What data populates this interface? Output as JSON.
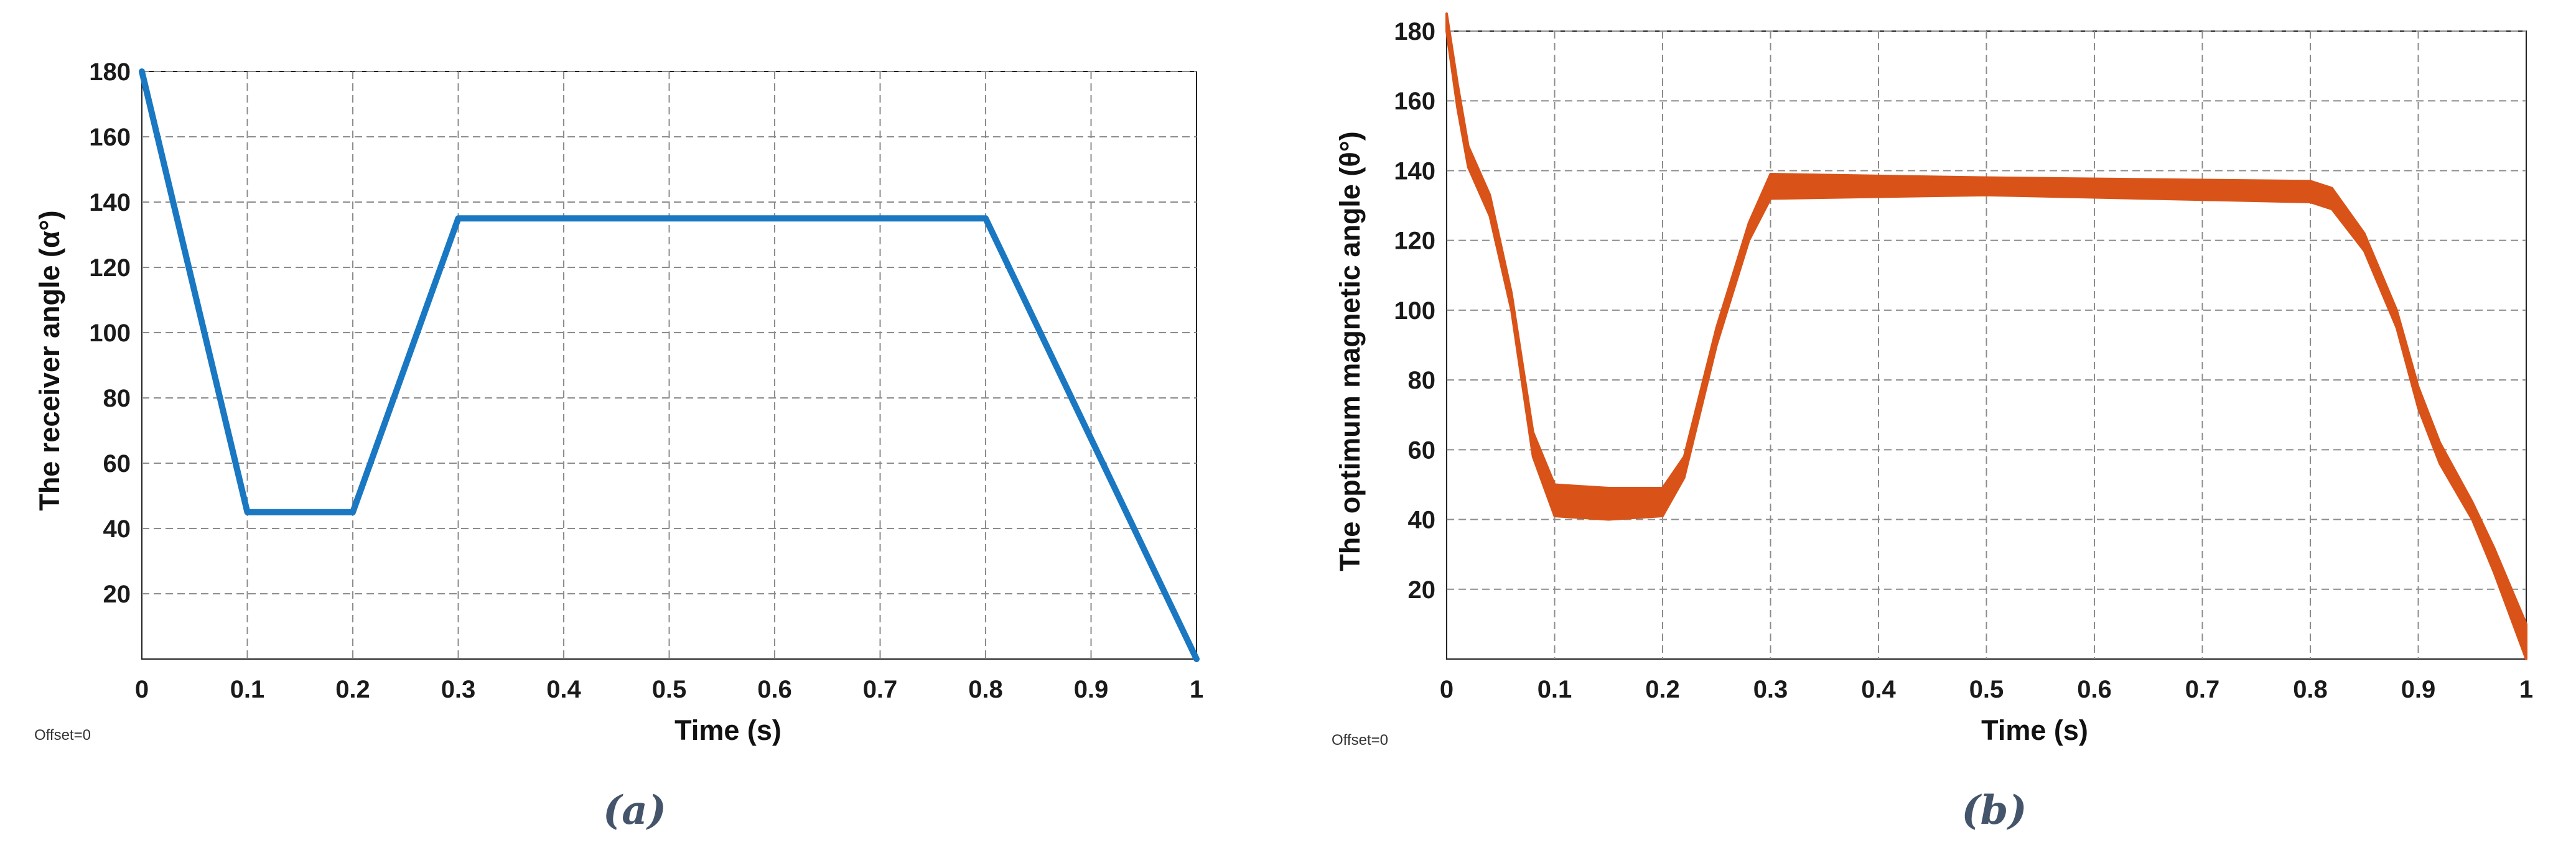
{
  "colors": {
    "grid": "#8c8c8c",
    "axis": "#222222",
    "series_a": "#1a78c2",
    "series_b": "#d95319",
    "caption": "#44546a"
  },
  "chart_data": [
    {
      "type": "line",
      "caption": "(a)",
      "xlabel": "Time (s)",
      "ylabel": "The receiver angle (α°)",
      "offset_text": "Offset=0",
      "xlim": [
        0,
        1
      ],
      "ylim": [
        0,
        180
      ],
      "xticks": [
        "0",
        "0.1",
        "0.2",
        "0.3",
        "0.4",
        "0.5",
        "0.6",
        "0.7",
        "0.8",
        "0.9",
        "1"
      ],
      "yticks": [
        "20",
        "40",
        "60",
        "80",
        "100",
        "120",
        "140",
        "160",
        "180"
      ],
      "grid": true,
      "series": [
        {
          "x": [
            0,
            0.1,
            0.2,
            0.3,
            0.8,
            1.0
          ],
          "y": [
            180,
            45,
            45,
            135,
            135,
            0
          ]
        }
      ]
    },
    {
      "type": "area",
      "caption": "(b)",
      "xlabel": "Time (s)",
      "ylabel": "The optimum magnetic angle (θ°)",
      "offset_text": "Offset=0",
      "xlim": [
        0,
        1
      ],
      "ylim": [
        0,
        180
      ],
      "xticks": [
        "0",
        "0.1",
        "0.2",
        "0.3",
        "0.4",
        "0.5",
        "0.6",
        "0.7",
        "0.8",
        "0.9",
        "1"
      ],
      "yticks": [
        "20",
        "40",
        "60",
        "80",
        "100",
        "120",
        "140",
        "160",
        "180"
      ],
      "grid": true,
      "series": [
        {
          "x": [
            0,
            0.01,
            0.02,
            0.04,
            0.06,
            0.08,
            0.1,
            0.15,
            0.2,
            0.22,
            0.25,
            0.28,
            0.3,
            0.5,
            0.8,
            0.82,
            0.85,
            0.88,
            0.9,
            0.92,
            0.95,
            0.97,
            1.0
          ],
          "upper": [
            185,
            165,
            147,
            133,
            105,
            65,
            50,
            49,
            49,
            58,
            95,
            125,
            139,
            138,
            137,
            135,
            122,
            100,
            78,
            62,
            45,
            32,
            10
          ],
          "lower": [
            180,
            158,
            141,
            127,
            100,
            58,
            41,
            40,
            41,
            52,
            90,
            120,
            132,
            133,
            131,
            129,
            117,
            95,
            72,
            56,
            40,
            25,
            0
          ]
        }
      ]
    }
  ]
}
